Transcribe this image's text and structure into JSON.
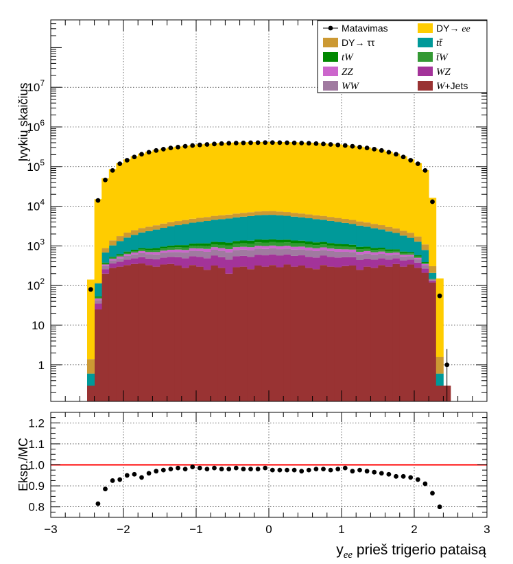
{
  "chart_data": [
    {
      "type": "bar",
      "ylabel": "Įvykių skaičius",
      "yscale": "log",
      "xlim": [
        -3,
        3
      ],
      "ylim": [
        0.12,
        500000000
      ],
      "yticks": [
        {
          "value": 1,
          "label": "1"
        },
        {
          "value": 10,
          "label": "10"
        },
        {
          "value": 100,
          "label": "10^2"
        },
        {
          "value": 1000,
          "label": "10^3"
        },
        {
          "value": 10000,
          "label": "10^4"
        },
        {
          "value": 100000,
          "label": "10^5"
        },
        {
          "value": 1000000,
          "label": "10^6"
        },
        {
          "value": 10000000,
          "label": "10^7"
        }
      ],
      "grid": true,
      "legend_position": "top-right",
      "stacked": true,
      "bin_edges": {
        "start": -2.5,
        "stop": 2.5,
        "width": 0.1
      },
      "series": [
        {
          "name": "W+Jets",
          "color": "#993333",
          "values": [
            0.3,
            25,
            200,
            280,
            300,
            330,
            350,
            360,
            330,
            300,
            340,
            350,
            320,
            280,
            330,
            300,
            250,
            320,
            280,
            200,
            290,
            300,
            260,
            320,
            300,
            330,
            290,
            340,
            300,
            320,
            280,
            260,
            330,
            300,
            290,
            310,
            320,
            250,
            300,
            280,
            330,
            300,
            350,
            300,
            340,
            280,
            210,
            120,
            0.3,
            0.3
          ]
        },
        {
          "name": "WZ",
          "color": "#a33399",
          "values": [
            0,
            10,
            60,
            80,
            100,
            120,
            140,
            160,
            150,
            160,
            170,
            180,
            200,
            210,
            220,
            230,
            240,
            250,
            240,
            250,
            260,
            260,
            270,
            280,
            280,
            280,
            280,
            270,
            260,
            260,
            250,
            250,
            240,
            230,
            220,
            210,
            200,
            190,
            180,
            170,
            160,
            150,
            140,
            130,
            110,
            100,
            60,
            10,
            0,
            0
          ]
        },
        {
          "name": "WW",
          "color": "#a07aa0",
          "values": [
            0,
            8,
            50,
            70,
            90,
            110,
            120,
            140,
            140,
            150,
            160,
            170,
            180,
            190,
            200,
            210,
            220,
            230,
            230,
            240,
            240,
            250,
            250,
            260,
            260,
            260,
            260,
            250,
            250,
            240,
            240,
            230,
            220,
            210,
            200,
            190,
            180,
            170,
            160,
            150,
            140,
            130,
            120,
            110,
            100,
            80,
            50,
            8,
            0,
            0
          ]
        },
        {
          "name": "ZZ",
          "color": "#cc66cc",
          "values": [
            0,
            4,
            30,
            40,
            50,
            60,
            70,
            80,
            80,
            90,
            90,
            100,
            110,
            110,
            120,
            120,
            130,
            130,
            130,
            140,
            140,
            140,
            150,
            150,
            150,
            150,
            150,
            150,
            140,
            140,
            140,
            130,
            130,
            120,
            120,
            110,
            110,
            100,
            100,
            90,
            90,
            80,
            70,
            60,
            50,
            40,
            30,
            4,
            0,
            0
          ]
        },
        {
          "name": "t̄W",
          "color": "#339933",
          "values": [
            0,
            3,
            20,
            30,
            40,
            50,
            60,
            70,
            80,
            90,
            100,
            110,
            120,
            130,
            140,
            150,
            160,
            170,
            180,
            190,
            200,
            210,
            215,
            220,
            225,
            225,
            220,
            215,
            210,
            200,
            190,
            180,
            170,
            160,
            150,
            140,
            130,
            120,
            110,
            100,
            90,
            80,
            70,
            60,
            50,
            40,
            20,
            3,
            0,
            0
          ]
        },
        {
          "name": "tW",
          "color": "#008800",
          "values": [
            0,
            3,
            20,
            30,
            40,
            50,
            60,
            70,
            80,
            90,
            100,
            110,
            120,
            130,
            140,
            150,
            160,
            170,
            180,
            190,
            200,
            210,
            215,
            220,
            225,
            225,
            220,
            215,
            210,
            200,
            190,
            180,
            170,
            160,
            150,
            140,
            130,
            120,
            110,
            100,
            90,
            80,
            70,
            60,
            50,
            40,
            20,
            3,
            0,
            0
          ]
        },
        {
          "name": "tt̄",
          "color": "#009999",
          "values": [
            0.3,
            60,
            300,
            500,
            700,
            900,
            1100,
            1300,
            1500,
            1700,
            1900,
            2100,
            2300,
            2500,
            2700,
            2900,
            3100,
            3300,
            3500,
            3700,
            3900,
            4100,
            4300,
            4500,
            4600,
            4600,
            4500,
            4300,
            4100,
            3900,
            3700,
            3500,
            3300,
            3100,
            2900,
            2700,
            2500,
            2300,
            2100,
            1900,
            1700,
            1500,
            1300,
            1100,
            900,
            700,
            400,
            60,
            0.3,
            0
          ]
        },
        {
          "name": "DY→ ττ",
          "color": "#cc9933",
          "values": [
            0.8,
            3,
            200,
            350,
            450,
            550,
            600,
            650,
            700,
            750,
            800,
            850,
            900,
            950,
            1000,
            1050,
            1100,
            1150,
            1200,
            1250,
            1300,
            1350,
            1400,
            1450,
            1500,
            1500,
            1450,
            1400,
            1350,
            1300,
            1250,
            1200,
            1150,
            1100,
            1050,
            1000,
            950,
            900,
            850,
            800,
            750,
            700,
            650,
            600,
            550,
            450,
            300,
            100,
            1,
            0
          ]
        },
        {
          "name": "DY→ ee",
          "color": "#ffcc00",
          "values": [
            140,
            15000,
            50000,
            85000,
            120000,
            150000,
            180000,
            210000,
            235000,
            260000,
            280000,
            300000,
            315000,
            330000,
            345000,
            358000,
            370000,
            380000,
            388000,
            395000,
            400000,
            405000,
            408000,
            410000,
            412000,
            412000,
            410000,
            408000,
            405000,
            400000,
            395000,
            388000,
            380000,
            370000,
            358000,
            345000,
            330000,
            315000,
            300000,
            280000,
            260000,
            235000,
            210000,
            180000,
            150000,
            120000,
            80000,
            16000,
            150,
            0
          ]
        }
      ],
      "data": {
        "name": "Matavimas",
        "x": [
          -2.45,
          -2.35,
          -2.25,
          -2.15,
          -2.05,
          -1.95,
          -1.85,
          -1.75,
          -1.65,
          -1.55,
          -1.45,
          -1.35,
          -1.25,
          -1.15,
          -1.05,
          -0.95,
          -0.85,
          -0.75,
          -0.65,
          -0.55,
          -0.45,
          -0.35,
          -0.25,
          -0.15,
          -0.05,
          0.05,
          0.15,
          0.25,
          0.35,
          0.45,
          0.55,
          0.65,
          0.75,
          0.85,
          0.95,
          1.05,
          1.15,
          1.25,
          1.35,
          1.45,
          1.55,
          1.65,
          1.75,
          1.85,
          1.95,
          2.05,
          2.15,
          2.25,
          2.35,
          2.45,
          2.55
        ],
        "y": [
          80,
          14000,
          46000,
          80000,
          118000,
          145000,
          175000,
          205000,
          230000,
          255000,
          275000,
          295000,
          310000,
          325000,
          340000,
          352000,
          362000,
          372000,
          380000,
          388000,
          392000,
          396000,
          400000,
          402000,
          404000,
          404000,
          402000,
          400000,
          396000,
          392000,
          388000,
          380000,
          372000,
          362000,
          352000,
          340000,
          325000,
          310000,
          295000,
          275000,
          255000,
          230000,
          205000,
          175000,
          145000,
          118000,
          80000,
          13000,
          55,
          1,
          0
        ]
      },
      "legend": [
        {
          "label": "Matavimas",
          "style": "data"
        },
        {
          "label": "DY→ ee",
          "color": "#ffcc00"
        },
        {
          "label": "DY→ ττ",
          "color": "#cc9933"
        },
        {
          "label": "tt̄",
          "color": "#009999"
        },
        {
          "label": "tW",
          "color": "#008800"
        },
        {
          "label": "t̄W",
          "color": "#339933"
        },
        {
          "label": "ZZ",
          "color": "#cc66cc"
        },
        {
          "label": "WZ",
          "color": "#a33399"
        },
        {
          "label": "WW",
          "color": "#a07aa0"
        },
        {
          "label": "W+Jets",
          "color": "#993333"
        }
      ]
    },
    {
      "type": "scatter",
      "ylabel": "Eksp./MC",
      "xlabel": "y_ee prieš trigerio pataisą",
      "xlim": [
        -3,
        3
      ],
      "ylim": [
        0.75,
        1.25
      ],
      "xticks": [
        -3,
        -2,
        -1,
        0,
        1,
        2,
        3
      ],
      "yticks": [
        0.8,
        0.9,
        1.0,
        1.1,
        1.2
      ],
      "ytick_labels": [
        "0.8",
        "0.9",
        "1.0",
        "1.1",
        "1.2"
      ],
      "grid": true,
      "reference_line": {
        "y": 1.0,
        "color": "#ff0000"
      },
      "x": [
        -2.35,
        -2.25,
        -2.15,
        -2.05,
        -1.95,
        -1.85,
        -1.75,
        -1.65,
        -1.55,
        -1.45,
        -1.35,
        -1.25,
        -1.15,
        -1.05,
        -0.95,
        -0.85,
        -0.75,
        -0.65,
        -0.55,
        -0.45,
        -0.35,
        -0.25,
        -0.15,
        -0.05,
        0.05,
        0.15,
        0.25,
        0.35,
        0.45,
        0.55,
        0.65,
        0.75,
        0.85,
        0.95,
        1.05,
        1.15,
        1.25,
        1.35,
        1.45,
        1.55,
        1.65,
        1.75,
        1.85,
        1.95,
        2.05,
        2.15,
        2.25,
        2.35
      ],
      "y": [
        0.815,
        0.885,
        0.925,
        0.93,
        0.95,
        0.955,
        0.94,
        0.96,
        0.97,
        0.975,
        0.98,
        0.985,
        0.98,
        0.99,
        0.985,
        0.98,
        0.985,
        0.98,
        0.98,
        0.985,
        0.98,
        0.98,
        0.98,
        0.985,
        0.975,
        0.975,
        0.975,
        0.975,
        0.97,
        0.975,
        0.98,
        0.98,
        0.975,
        0.98,
        0.985,
        0.97,
        0.975,
        0.97,
        0.965,
        0.96,
        0.955,
        0.945,
        0.945,
        0.94,
        0.93,
        0.91,
        0.865,
        0.8
      ]
    }
  ]
}
